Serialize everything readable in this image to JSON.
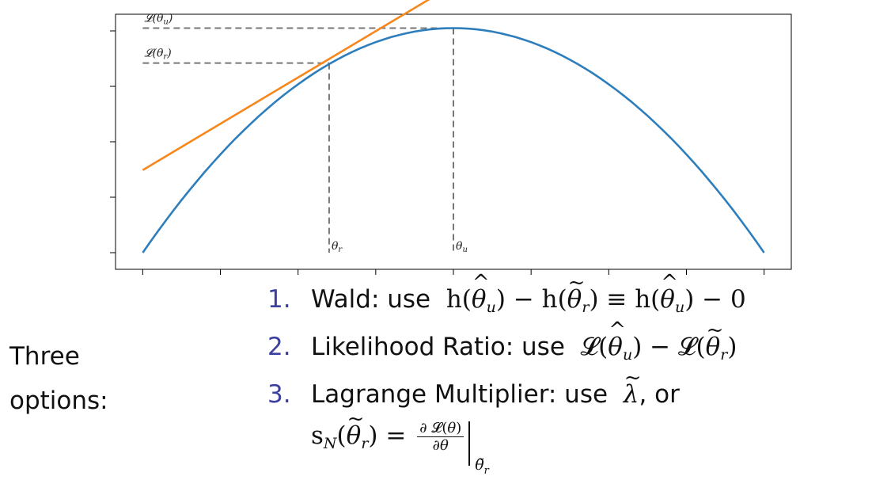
{
  "chart_data": {
    "type": "line",
    "title": "",
    "xlabel": "",
    "ylabel": "",
    "x_tick_labels": [
      "",
      "",
      "",
      "",
      "",
      "",
      "",
      "",
      ""
    ],
    "y_tick_labels": [
      "",
      "",
      "",
      "",
      ""
    ],
    "xlim": [
      -0.35,
      8.35
    ],
    "ylim": [
      -0.3,
      4.3
    ],
    "x_ticks": [
      0,
      1,
      2,
      3,
      4,
      5,
      6,
      7,
      8
    ],
    "y_ticks": [
      0,
      1,
      2,
      3,
      4
    ],
    "series": [
      {
        "style": "log-likelihood curve",
        "color": "#2e7ebc",
        "x": [
          0,
          0.5,
          1,
          1.5,
          2,
          2.5,
          3,
          3.5,
          4,
          4.5,
          5,
          5.5,
          6,
          6.5,
          7,
          7.5,
          8
        ],
        "y": [
          0,
          0.88,
          1.69,
          2.38,
          2.97,
          3.45,
          3.78,
          3.98,
          4.05,
          3.98,
          3.78,
          3.45,
          2.97,
          2.38,
          1.69,
          0.88,
          0
        ]
      },
      {
        "style": "tangent line at theta_r",
        "color": "#f7861b",
        "x": [
          0,
          3.7
        ],
        "y": [
          1.49,
          4.58
        ]
      }
    ],
    "theta_r": 2.4,
    "theta_u": 4.0,
    "L_theta_r": 3.42,
    "L_theta_u": 4.05,
    "annotations": {
      "L_u_label": "𝓛(θ_u)",
      "L_r_label": "𝓛(θ_r)",
      "theta_r_label": "θ_r",
      "theta_u_label": "θ_u"
    },
    "grid": false,
    "legend": "none"
  },
  "slide": {
    "left_label_line1": "Three",
    "left_label_line2": "options:",
    "options": [
      {
        "number": "1.",
        "name": "Wald: use"
      },
      {
        "number": "2.",
        "name": "Likelihood Ratio: use"
      },
      {
        "number": "3.",
        "name": "Lagrange Multiplier: use",
        "suffix": ", or"
      }
    ]
  },
  "colors": {
    "curve": "#2e7ebc",
    "tangent": "#f7861b",
    "guides": "#777777",
    "list_numbers": "#3b3f9f"
  }
}
